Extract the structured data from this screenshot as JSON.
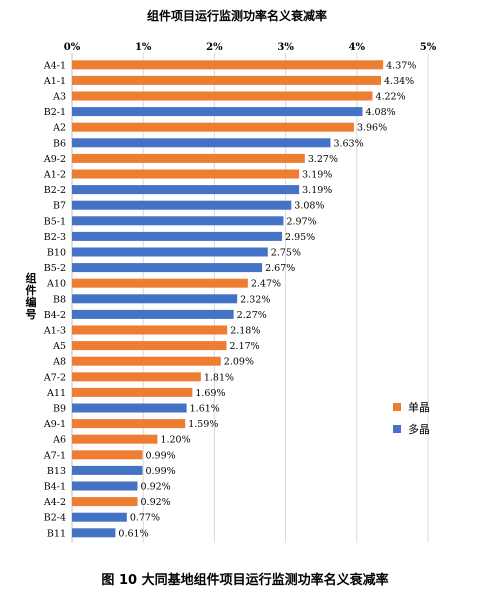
{
  "chart_data": {
    "type": "bar",
    "orientation": "horizontal",
    "title": "组件项目运行监测功率名义衰减率",
    "caption": "图 10 大同基地组件项目运行监测功率名义衰减率",
    "ylabel": "组件编号",
    "xlim": [
      0,
      5
    ],
    "x_ticks": [
      "0%",
      "1%",
      "2%",
      "3%",
      "4%",
      "5%"
    ],
    "grid": true,
    "legend_position": "right",
    "colors": {
      "单晶": "#ED7D31",
      "多晶": "#4472C4"
    },
    "legend": [
      {
        "name": "单晶",
        "color": "#ED7D31"
      },
      {
        "name": "多晶",
        "color": "#4472C4"
      }
    ],
    "categories": [
      "A4-1",
      "A1-1",
      "A3",
      "B2-1",
      "A2",
      "B6",
      "A9-2",
      "A1-2",
      "B2-2",
      "B7",
      "B5-1",
      "B2-3",
      "B10",
      "B5-2",
      "A10",
      "B8",
      "B4-2",
      "A1-3",
      "A5",
      "A8",
      "A7-2",
      "A11",
      "B9",
      "A9-1",
      "A6",
      "A7-1",
      "B13",
      "B4-1",
      "A4-2",
      "B2-4",
      "B11"
    ],
    "values": [
      4.37,
      4.34,
      4.22,
      4.08,
      3.96,
      3.63,
      3.27,
      3.19,
      3.19,
      3.08,
      2.97,
      2.95,
      2.75,
      2.67,
      2.47,
      2.32,
      2.27,
      2.18,
      2.17,
      2.09,
      1.81,
      1.69,
      1.61,
      1.59,
      1.2,
      0.99,
      0.99,
      0.92,
      0.92,
      0.77,
      0.61
    ],
    "value_labels": [
      "4.37%",
      "4.34%",
      "4.22%",
      "4.08%",
      "3.96%",
      "3.63%",
      "3.27%",
      "3.19%",
      "3.19%",
      "3.08%",
      "2.97%",
      "2.95%",
      "2.75%",
      "2.67%",
      "2.47%",
      "2.32%",
      "2.27%",
      "2.18%",
      "2.17%",
      "2.09%",
      "1.81%",
      "1.69%",
      "1.61%",
      "1.59%",
      "1.20%",
      "0.99%",
      "0.99%",
      "0.92%",
      "0.92%",
      "0.77%",
      "0.61%"
    ],
    "series_of_bar": [
      "单晶",
      "单晶",
      "单晶",
      "多晶",
      "单晶",
      "多晶",
      "单晶",
      "单晶",
      "多晶",
      "多晶",
      "多晶",
      "多晶",
      "多晶",
      "多晶",
      "单晶",
      "多晶",
      "多晶",
      "单晶",
      "单晶",
      "单晶",
      "单晶",
      "单晶",
      "多晶",
      "单晶",
      "单晶",
      "单晶",
      "多晶",
      "多晶",
      "单晶",
      "多晶",
      "多晶"
    ]
  }
}
